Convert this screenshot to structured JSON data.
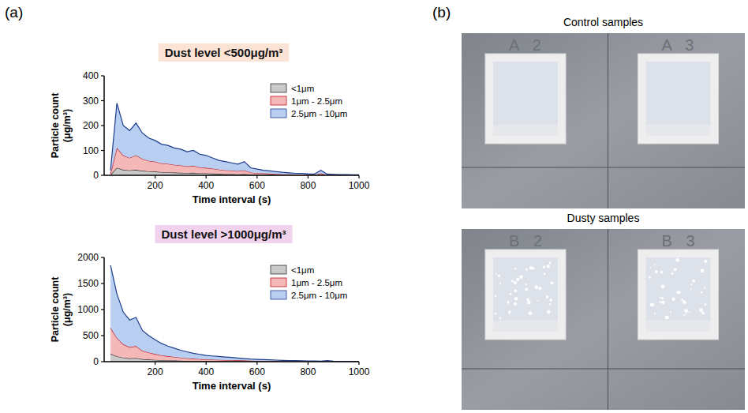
{
  "panels": {
    "a": "(a)",
    "b": "(b)"
  },
  "chart_data": [
    {
      "type": "area",
      "stacked": true,
      "title": "Dust level <500μg/m³",
      "y_label": "Particle count (μg/m³)",
      "x_label": "Time interval (s)",
      "xlim": [
        0,
        1000
      ],
      "xticks": [
        200,
        400,
        600,
        800,
        1000
      ],
      "ylim": [
        0,
        400
      ],
      "yticks": [
        0,
        100,
        200,
        300,
        400
      ],
      "legend": "top-right",
      "x": [
        25,
        50,
        75,
        100,
        125,
        150,
        175,
        200,
        225,
        250,
        275,
        300,
        325,
        350,
        375,
        400,
        425,
        450,
        475,
        500,
        525,
        550,
        575,
        600,
        625,
        650,
        675,
        700,
        725,
        750,
        775,
        800,
        825,
        850,
        875,
        900,
        925,
        950,
        975,
        1000
      ],
      "series": [
        {
          "name": "<1μm",
          "color": "#c9c9c9",
          "values": [
            2,
            30,
            22,
            20,
            22,
            18,
            16,
            15,
            13,
            12,
            11,
            10,
            9,
            10,
            8,
            8,
            7,
            6,
            5,
            5,
            4,
            5,
            3,
            2,
            2,
            2,
            1,
            1,
            1,
            1,
            1,
            1,
            0,
            2,
            0,
            0,
            0,
            0,
            0,
            0
          ]
        },
        {
          "name": "1μm - 2.5μm",
          "color": "#f4b8b8",
          "values": [
            5,
            80,
            58,
            50,
            58,
            48,
            42,
            40,
            35,
            34,
            31,
            30,
            27,
            28,
            24,
            22,
            20,
            17,
            15,
            14,
            13,
            15,
            8,
            7,
            6,
            5,
            4,
            3,
            3,
            2,
            2,
            2,
            1,
            6,
            1,
            1,
            1,
            1,
            1,
            1
          ]
        },
        {
          "name": "2.5μm - 10μm",
          "color": "#b9cff2",
          "values": [
            13,
            180,
            120,
            110,
            130,
            104,
            92,
            85,
            77,
            74,
            68,
            65,
            59,
            62,
            53,
            50,
            43,
            37,
            35,
            31,
            28,
            35,
            19,
            16,
            12,
            11,
            10,
            8,
            6,
            5,
            5,
            3,
            4,
            12,
            4,
            3,
            2,
            2,
            1,
            1
          ]
        }
      ]
    },
    {
      "type": "area",
      "stacked": true,
      "title": "Dust level >1000μg/m³",
      "y_label": "Particle count (μg/m³)",
      "x_label": "Time interval (s)",
      "xlim": [
        0,
        1000
      ],
      "xticks": [
        200,
        400,
        600,
        800,
        1000
      ],
      "ylim": [
        0,
        2000
      ],
      "yticks": [
        0,
        500,
        1000,
        1500,
        2000
      ],
      "legend": "top-right",
      "x": [
        25,
        50,
        75,
        100,
        125,
        150,
        175,
        200,
        225,
        250,
        275,
        300,
        325,
        350,
        375,
        400,
        425,
        450,
        475,
        500,
        525,
        550,
        575,
        600,
        625,
        650,
        675,
        700,
        725,
        750,
        775,
        800,
        825,
        850,
        875,
        900,
        925,
        950,
        975,
        1000
      ],
      "series": [
        {
          "name": "<1μm",
          "color": "#c9c9c9",
          "values": [
            150,
            104,
            76,
            64,
            68,
            48,
            40,
            34,
            28,
            24,
            21,
            18,
            15,
            13,
            11,
            10,
            9,
            8,
            7,
            6,
            6,
            5,
            4,
            4,
            3,
            3,
            2,
            2,
            2,
            2,
            1,
            1,
            1,
            1,
            2,
            1,
            0,
            0,
            0,
            0
          ]
        },
        {
          "name": "1μm - 2.5μm",
          "color": "#f4b8b8",
          "values": [
            500,
            351,
            257,
            216,
            230,
            162,
            135,
            113,
            95,
            81,
            70,
            59,
            51,
            43,
            38,
            32,
            30,
            27,
            24,
            22,
            19,
            16,
            14,
            12,
            11,
            9,
            8,
            7,
            6,
            5,
            5,
            4,
            3,
            3,
            5,
            2,
            2,
            1,
            1,
            1
          ]
        },
        {
          "name": "2.5μm - 10μm",
          "color": "#b9cff2",
          "values": [
            1200,
            845,
            617,
            520,
            552,
            390,
            325,
            273,
            227,
            195,
            169,
            143,
            124,
            104,
            91,
            78,
            71,
            65,
            59,
            52,
            45,
            39,
            32,
            29,
            26,
            23,
            20,
            16,
            14,
            13,
            12,
            10,
            8,
            6,
            13,
            5,
            4,
            4,
            3,
            2
          ]
        }
      ]
    }
  ],
  "photos": [
    {
      "title": "Control samples",
      "samples": [
        "A 2",
        "A 3"
      ]
    },
    {
      "title": "Dusty samples",
      "samples": [
        "B 2",
        "B 3"
      ]
    }
  ]
}
